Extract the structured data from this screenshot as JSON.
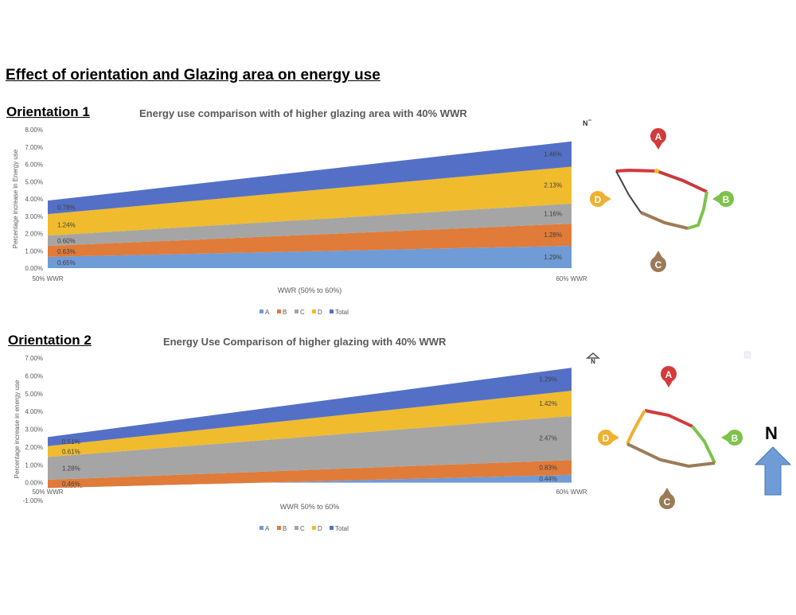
{
  "page_title": "Effect of orientation and Glazing area on energy use",
  "orientation1": {
    "label": "Orientation 1",
    "chart_title": "Energy use comparison with of higher glazing area with 40% WWR",
    "north_marker": "N"
  },
  "orientation2": {
    "label": "Orientation 2",
    "chart_title": "Energy Use Comparison of higher glazing with 40% WWR",
    "north_marker": "N"
  },
  "north_label": "N",
  "compass": {
    "a": "A",
    "b": "B",
    "c": "C",
    "d": "D"
  },
  "colors": {
    "A": "#6f9bd6",
    "B": "#e07b39",
    "C": "#a5a5a5",
    "D": "#f0bc2d",
    "Total": "#5470c6"
  },
  "chart_data": [
    {
      "type": "area",
      "stacked": true,
      "title": "Energy use comparison with of higher glazing area with 40% WWR",
      "xlabel": "WWR (50% to 60%)",
      "ylabel": "Percentage increase in Energy use",
      "categories": [
        "50% WWR",
        "60% WWR"
      ],
      "ylim": [
        0,
        8
      ],
      "yticks": [
        0,
        1,
        2,
        3,
        4,
        5,
        6,
        7,
        8
      ],
      "ytick_labels": [
        "0.00%",
        "1.00%",
        "2.00%",
        "3.00%",
        "4.00%",
        "5.00%",
        "6.00%",
        "7.00%",
        "8.00%"
      ],
      "series": [
        {
          "name": "A",
          "values": [
            0.65,
            1.29
          ],
          "labels": [
            "0.65%",
            "1.29%"
          ]
        },
        {
          "name": "B",
          "values": [
            0.63,
            1.28
          ],
          "labels": [
            "0.63%",
            "1.28%"
          ]
        },
        {
          "name": "C",
          "values": [
            0.6,
            1.16
          ],
          "labels": [
            "0.60%",
            "1.16%"
          ]
        },
        {
          "name": "D",
          "values": [
            1.24,
            2.13
          ],
          "labels": [
            "1.24%",
            "2.13%"
          ]
        },
        {
          "name": "Total",
          "values": [
            0.78,
            1.46
          ],
          "labels": [
            "0.78%",
            "1.46%"
          ]
        }
      ],
      "legend": [
        "A",
        "B",
        "C",
        "D",
        "Total"
      ],
      "legend_position": "bottom",
      "grid": false
    },
    {
      "type": "area",
      "stacked": true,
      "title": "Energy Use Comparison of higher glazing with 40% WWR",
      "xlabel": "WWR 50% to 60%",
      "ylabel": "Percentage increase in energy use",
      "categories": [
        "50% WWR",
        "60% WWR"
      ],
      "ylim": [
        -1,
        7
      ],
      "yticks": [
        -1,
        0,
        1,
        2,
        3,
        4,
        5,
        6,
        7
      ],
      "ytick_labels": [
        "-1.00%",
        "0.00%",
        "1.00%",
        "2.00%",
        "3.00%",
        "4.00%",
        "5.00%",
        "6.00%",
        "7.00%"
      ],
      "series": [
        {
          "name": "A",
          "values": [
            -0.3,
            0.44
          ],
          "labels": [
            "-0.30%",
            "0.44%"
          ]
        },
        {
          "name": "B",
          "values": [
            0.46,
            0.83
          ],
          "labels": [
            "0.46%",
            "0.83%"
          ]
        },
        {
          "name": "C",
          "values": [
            1.28,
            2.47
          ],
          "labels": [
            "1.28%",
            "2.47%"
          ]
        },
        {
          "name": "D",
          "values": [
            0.61,
            1.42
          ],
          "labels": [
            "0.61%",
            "1.42%"
          ]
        },
        {
          "name": "Total",
          "values": [
            0.51,
            1.29
          ],
          "labels": [
            "0.51%",
            "1.29%"
          ]
        }
      ],
      "legend": [
        "A",
        "B",
        "C",
        "D",
        "Total"
      ],
      "legend_position": "bottom",
      "grid": false
    }
  ]
}
